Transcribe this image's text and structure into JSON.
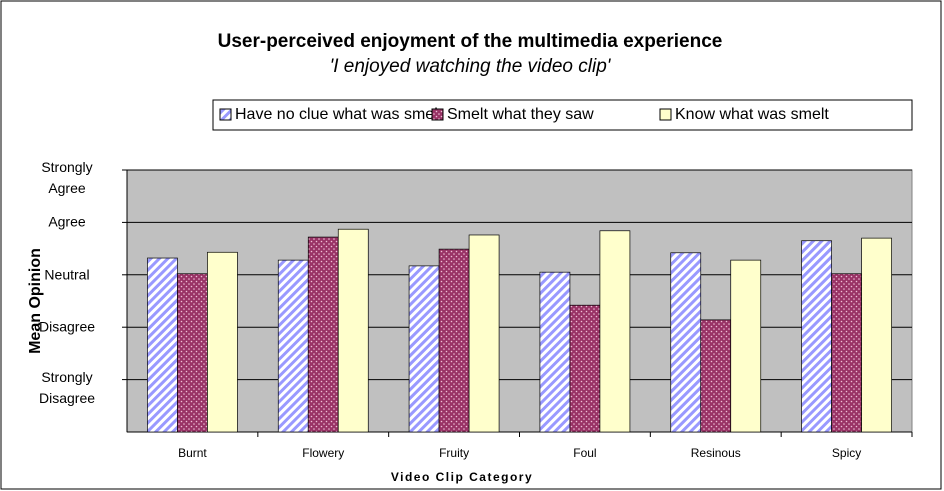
{
  "chart_data": {
    "type": "bar",
    "title": "User-perceived enjoyment of the multimedia experience",
    "subtitle": "'I enjoyed watching the video clip'",
    "x_label": "Video Clip Category",
    "y_label": "Mean Opinion",
    "categories": [
      "Burnt",
      "Flowery",
      "Fruity",
      "Foul",
      "Resinous",
      "Spicy"
    ],
    "series": [
      {
        "name": "Have no clue what was smelt",
        "color": "#9999ff",
        "values": [
          3.32,
          3.28,
          3.17,
          3.05,
          3.42,
          3.65
        ]
      },
      {
        "name": "Smelt what they saw",
        "color": "#993366",
        "values": [
          3.02,
          3.72,
          3.49,
          2.42,
          2.14,
          3.02
        ]
      },
      {
        "name": "Know what was smelt",
        "color": "#ffffcc",
        "values": [
          3.43,
          3.87,
          3.76,
          3.84,
          3.28,
          3.7
        ]
      }
    ],
    "ylim": [
      0,
      5
    ],
    "yticks": [
      {
        "value": 1,
        "label": "Strongly Disagree"
      },
      {
        "value": 2,
        "label": "Disagree"
      },
      {
        "value": 3,
        "label": "Neutral"
      },
      {
        "value": 4,
        "label": "Agree"
      },
      {
        "value": 5,
        "label": "Strongly Agree"
      }
    ],
    "grid": true,
    "legend": "top"
  }
}
